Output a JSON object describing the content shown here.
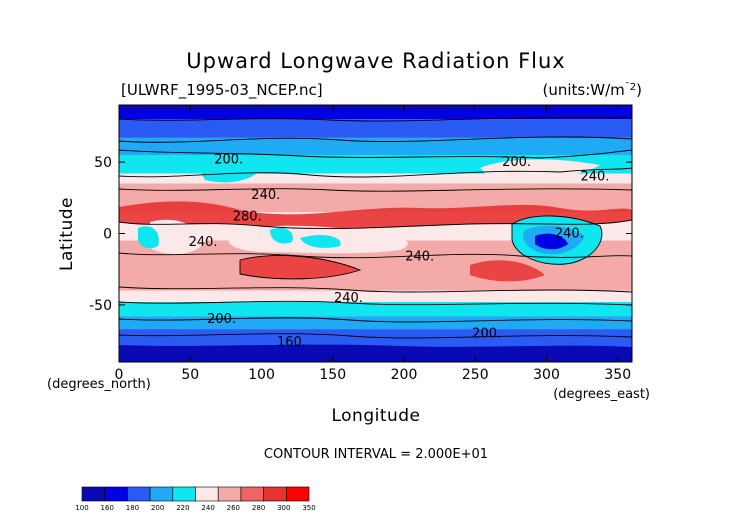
{
  "chart_data": {
    "type": "heatmap",
    "title": "Upward Longwave Radiation Flux",
    "file_label": "[ULWRF_1995-03_NCEP.nc]",
    "units_label": "(units:W/m^-2)",
    "units_prefix": "(units:W/m",
    "units_exp": "¯2",
    "units_suffix": ")",
    "xlabel": "Longitude",
    "ylabel": "Latitude",
    "x_unit_label": "(degrees_east)",
    "y_unit_label": "(degrees_north)",
    "xlim": [
      0,
      360
    ],
    "ylim": [
      -90,
      90
    ],
    "x_ticks": [
      0,
      50,
      100,
      150,
      200,
      250,
      300,
      350
    ],
    "y_ticks": [
      50,
      0,
      -50
    ],
    "x_tick_labels": [
      "0",
      "50",
      "100",
      "150",
      "200",
      "250",
      "300",
      "350"
    ],
    "y_tick_labels": [
      "50",
      "0",
      "-50"
    ],
    "contour_interval_text": "CONTOUR INTERVAL = 2.000E+01",
    "colorbar": {
      "levels": [
        "100",
        "160",
        "180",
        "200",
        "220",
        "240",
        "260",
        "280",
        "300",
        "350"
      ],
      "colors": [
        "#0a0ab4",
        "#0000e6",
        "#2a5cf5",
        "#1eaaf5",
        "#0fe6f0",
        "#fbe8e8",
        "#f5aaaa",
        "#f06464",
        "#e83232",
        "#ff0000"
      ]
    },
    "contour_labels": [
      {
        "text": "200.",
        "lon": 77,
        "lat": 52
      },
      {
        "text": "200.",
        "lon": 279,
        "lat": 50
      },
      {
        "text": "240.",
        "lon": 334,
        "lat": 40
      },
      {
        "text": "240.",
        "lon": 103,
        "lat": 27
      },
      {
        "text": "280.",
        "lon": 90,
        "lat": 12
      },
      {
        "text": "240.",
        "lon": 59,
        "lat": -6
      },
      {
        "text": "240.",
        "lon": 316,
        "lat": 0
      },
      {
        "text": "240.",
        "lon": 211,
        "lat": -16
      },
      {
        "text": "240.",
        "lon": 161,
        "lat": -45
      },
      {
        "text": "200.",
        "lon": 72,
        "lat": -60
      },
      {
        "text": "200.",
        "lon": 258,
        "lat": -70
      },
      {
        "text": "160.",
        "lon": 121,
        "lat": -76
      }
    ],
    "zonal_pattern": [
      {
        "lat_from": 90,
        "lat_to": 80,
        "value": 160
      },
      {
        "lat_from": 80,
        "lat_to": 67,
        "value": 180
      },
      {
        "lat_from": 67,
        "lat_to": 55,
        "value": 200
      },
      {
        "lat_from": 55,
        "lat_to": 42,
        "value": 220
      },
      {
        "lat_from": 42,
        "lat_to": 35,
        "value": 240
      },
      {
        "lat_from": 35,
        "lat_to": 15,
        "value": 260
      },
      {
        "lat_from": 15,
        "lat_to": -5,
        "value": 240
      },
      {
        "lat_from": -5,
        "lat_to": -40,
        "value": 260
      },
      {
        "lat_from": -40,
        "lat_to": -48,
        "value": 240
      },
      {
        "lat_from": -48,
        "lat_to": -58,
        "value": 220
      },
      {
        "lat_from": -58,
        "lat_to": -67,
        "value": 200
      },
      {
        "lat_from": -67,
        "lat_to": -80,
        "value": 180
      },
      {
        "lat_from": -80,
        "lat_to": -90,
        "value": 160
      }
    ],
    "grid": false,
    "legend": "bottom-left colorbar"
  }
}
